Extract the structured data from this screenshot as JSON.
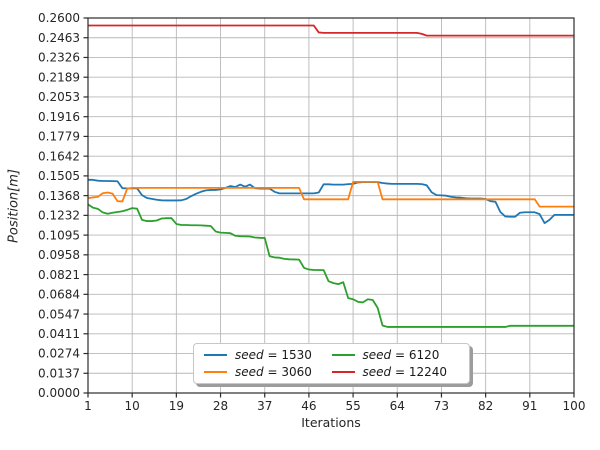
{
  "figure": {
    "xlabel": "Iterations",
    "ylabel": "Position[m]",
    "xlim": [
      1,
      100
    ],
    "ylim": [
      0,
      0.26
    ],
    "grid": true,
    "grid_color": "#b8b8b8",
    "spine_color": "#2b2b2b",
    "tick_label_color": "#262626",
    "background": "#ffffff",
    "x_ticks": [
      {
        "value": 1,
        "label": "1"
      },
      {
        "value": 10,
        "label": "10"
      },
      {
        "value": 19,
        "label": "19"
      },
      {
        "value": 28,
        "label": "28"
      },
      {
        "value": 37,
        "label": "37"
      },
      {
        "value": 46,
        "label": "46"
      },
      {
        "value": 55,
        "label": "55"
      },
      {
        "value": 64,
        "label": "64"
      },
      {
        "value": 73,
        "label": "73"
      },
      {
        "value": 82,
        "label": "82"
      },
      {
        "value": 91,
        "label": "91"
      },
      {
        "value": 100,
        "label": "100"
      }
    ],
    "y_ticks": [
      {
        "value": 0.0,
        "label": "0.0000"
      },
      {
        "value": 0.013684,
        "label": "0.0137"
      },
      {
        "value": 0.027368,
        "label": "0.0274"
      },
      {
        "value": 0.041053,
        "label": "0.0411"
      },
      {
        "value": 0.054737,
        "label": "0.0547"
      },
      {
        "value": 0.068421,
        "label": "0.0684"
      },
      {
        "value": 0.082105,
        "label": "0.0821"
      },
      {
        "value": 0.095789,
        "label": "0.0958"
      },
      {
        "value": 0.109474,
        "label": "0.1095"
      },
      {
        "value": 0.123158,
        "label": "0.1232"
      },
      {
        "value": 0.136842,
        "label": "0.1368"
      },
      {
        "value": 0.150526,
        "label": "0.1505"
      },
      {
        "value": 0.164211,
        "label": "0.1642"
      },
      {
        "value": 0.177895,
        "label": "0.1779"
      },
      {
        "value": 0.191579,
        "label": "0.1916"
      },
      {
        "value": 0.205263,
        "label": "0.2053"
      },
      {
        "value": 0.218947,
        "label": "0.2189"
      },
      {
        "value": 0.232632,
        "label": "0.2326"
      },
      {
        "value": 0.246316,
        "label": "0.2463"
      },
      {
        "value": 0.26,
        "label": "0.2600"
      }
    ]
  },
  "chart_data": {
    "type": "line",
    "title": "",
    "xlabel": "Iterations",
    "ylabel": "Position[m]",
    "x_start": 1,
    "x_step": 1,
    "x_count": 100,
    "legend": {
      "position": "lower center",
      "columns": 2,
      "shadow": true
    },
    "series": [
      {
        "id": "seed-1530",
        "name": "seed = 1530",
        "label_italic": "seed",
        "label_rest": "= 1530",
        "color": "#1f77b4",
        "values": [
          0.1478,
          0.1478,
          0.1472,
          0.147,
          0.147,
          0.1469,
          0.1468,
          0.142,
          0.1419,
          0.1419,
          0.1419,
          0.1372,
          0.1352,
          0.1346,
          0.134,
          0.1336,
          0.1335,
          0.1335,
          0.1335,
          0.1336,
          0.1345,
          0.1365,
          0.1381,
          0.1395,
          0.1405,
          0.1408,
          0.1408,
          0.1412,
          0.1422,
          0.1435,
          0.1428,
          0.1445,
          0.143,
          0.1445,
          0.142,
          0.1417,
          0.1417,
          0.1417,
          0.1395,
          0.1384,
          0.1384,
          0.1384,
          0.1384,
          0.1384,
          0.1384,
          0.1384,
          0.1384,
          0.139,
          0.1447,
          0.1447,
          0.1445,
          0.1445,
          0.1445,
          0.1448,
          0.145,
          0.146,
          0.1462,
          0.1462,
          0.1462,
          0.1462,
          0.1456,
          0.1452,
          0.145,
          0.145,
          0.145,
          0.145,
          0.145,
          0.145,
          0.1448,
          0.144,
          0.1392,
          0.1372,
          0.137,
          0.1368,
          0.136,
          0.1356,
          0.1354,
          0.135,
          0.1348,
          0.1348,
          0.1348,
          0.1345,
          0.133,
          0.1326,
          0.1255,
          0.1224,
          0.1222,
          0.1222,
          0.125,
          0.1253,
          0.1253,
          0.1253,
          0.124,
          0.1178,
          0.12,
          0.1235,
          0.1235,
          0.1235,
          0.1235,
          0.1235
        ]
      },
      {
        "id": "seed-3060",
        "name": "seed = 3060",
        "label_italic": "seed",
        "label_rest": "= 3060",
        "color": "#ff7f0e",
        "values": [
          0.135,
          0.1356,
          0.136,
          0.1385,
          0.139,
          0.1382,
          0.133,
          0.1328,
          0.1418,
          0.1422,
          0.1422,
          0.1422,
          0.1422,
          0.1422,
          0.1422,
          0.1422,
          0.1422,
          0.1422,
          0.1422,
          0.1422,
          0.1422,
          0.1422,
          0.1422,
          0.1422,
          0.1422,
          0.1422,
          0.1422,
          0.1422,
          0.1422,
          0.1422,
          0.1422,
          0.1422,
          0.1422,
          0.1422,
          0.1422,
          0.1422,
          0.1422,
          0.1422,
          0.1422,
          0.1422,
          0.1422,
          0.1422,
          0.1422,
          0.1422,
          0.1343,
          0.1343,
          0.1343,
          0.1343,
          0.1343,
          0.1343,
          0.1343,
          0.1343,
          0.1343,
          0.1343,
          0.1464,
          0.1464,
          0.1464,
          0.1464,
          0.1464,
          0.1464,
          0.1343,
          0.1343,
          0.1343,
          0.1343,
          0.1343,
          0.1343,
          0.1343,
          0.1343,
          0.1343,
          0.1343,
          0.1343,
          0.1343,
          0.1343,
          0.1343,
          0.1343,
          0.1343,
          0.1343,
          0.1343,
          0.1343,
          0.1343,
          0.1343,
          0.1343,
          0.1343,
          0.1343,
          0.1343,
          0.1343,
          0.1343,
          0.1343,
          0.1343,
          0.1343,
          0.1343,
          0.1343,
          0.1292,
          0.1292,
          0.1292,
          0.1292,
          0.1292,
          0.1292,
          0.1292,
          0.1292
        ]
      },
      {
        "id": "seed-6120",
        "name": "seed = 6120",
        "label_italic": "seed",
        "label_rest": "= 6120",
        "color": "#2ca02c",
        "values": [
          0.1308,
          0.1285,
          0.1277,
          0.1252,
          0.1243,
          0.125,
          0.1255,
          0.126,
          0.127,
          0.1282,
          0.1278,
          0.12,
          0.1192,
          0.1192,
          0.1196,
          0.121,
          0.1212,
          0.1212,
          0.1172,
          0.1165,
          0.1165,
          0.1163,
          0.1163,
          0.1162,
          0.116,
          0.1158,
          0.112,
          0.1112,
          0.111,
          0.1108,
          0.109,
          0.1087,
          0.1086,
          0.1085,
          0.1078,
          0.1076,
          0.1075,
          0.0948,
          0.094,
          0.0938,
          0.093,
          0.0927,
          0.0926,
          0.0925,
          0.0868,
          0.0856,
          0.0853,
          0.0853,
          0.0852,
          0.0775,
          0.0762,
          0.0755,
          0.0768,
          0.0658,
          0.065,
          0.0632,
          0.0628,
          0.065,
          0.0645,
          0.059,
          0.0468,
          0.0458,
          0.0458,
          0.0458,
          0.0458,
          0.0458,
          0.0458,
          0.0458,
          0.0458,
          0.0458,
          0.0458,
          0.0458,
          0.0458,
          0.0458,
          0.0458,
          0.0458,
          0.0458,
          0.0458,
          0.0458,
          0.0458,
          0.0458,
          0.0458,
          0.0458,
          0.0458,
          0.0458,
          0.0458,
          0.0466,
          0.0466,
          0.0466,
          0.0466,
          0.0466,
          0.0466,
          0.0466,
          0.0466,
          0.0466,
          0.0466,
          0.0466,
          0.0466,
          0.0466,
          0.0466
        ]
      },
      {
        "id": "seed-12240",
        "name": "seed = 12240",
        "label_italic": "seed",
        "label_rest": "= 12240",
        "color": "#d62728",
        "values": [
          0.2548,
          0.2548,
          0.2548,
          0.2548,
          0.2548,
          0.2548,
          0.2548,
          0.2548,
          0.2548,
          0.2548,
          0.2548,
          0.2548,
          0.2548,
          0.2548,
          0.2548,
          0.2548,
          0.2548,
          0.2548,
          0.2548,
          0.2548,
          0.2548,
          0.2548,
          0.2548,
          0.2548,
          0.2548,
          0.2548,
          0.2548,
          0.2548,
          0.2548,
          0.2548,
          0.2548,
          0.2548,
          0.2548,
          0.2548,
          0.2548,
          0.2548,
          0.2548,
          0.2548,
          0.2548,
          0.2548,
          0.2548,
          0.2548,
          0.2548,
          0.2548,
          0.2548,
          0.2548,
          0.2548,
          0.25,
          0.2497,
          0.2497,
          0.2497,
          0.2497,
          0.2497,
          0.2497,
          0.2497,
          0.2497,
          0.2497,
          0.2497,
          0.2497,
          0.2497,
          0.2497,
          0.2497,
          0.2497,
          0.2497,
          0.2497,
          0.2497,
          0.2497,
          0.2497,
          0.249,
          0.2478,
          0.2478,
          0.2478,
          0.2478,
          0.2478,
          0.2478,
          0.2478,
          0.2478,
          0.2478,
          0.2478,
          0.2478,
          0.2478,
          0.2478,
          0.2478,
          0.2478,
          0.2478,
          0.2478,
          0.2478,
          0.2478,
          0.2478,
          0.2478,
          0.2478,
          0.2478,
          0.2478,
          0.2478,
          0.2478,
          0.2478,
          0.2478,
          0.2478,
          0.2478,
          0.2478
        ]
      }
    ]
  }
}
